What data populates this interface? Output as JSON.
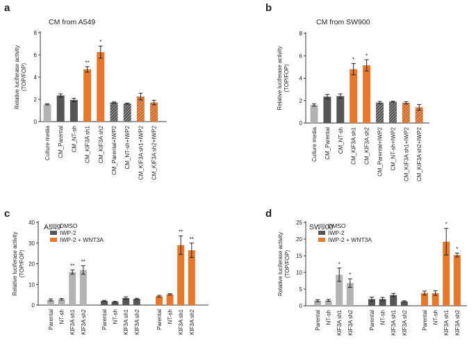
{
  "colors": {
    "light_gray": "#b3b3b3",
    "dark_gray": "#555555",
    "orange": "#e8772e",
    "hatch_dark": "#555555",
    "hatch_orange": "#d06a28"
  },
  "chart_data": [
    {
      "type": "bar",
      "panel_letter": "a",
      "title": "CM from A549",
      "ylabel": "Relative luciferase activity",
      "ylabel2": "(TOP/FOP)",
      "ylim": [
        0,
        8
      ],
      "yticks": [
        "0",
        "2",
        "4",
        "6",
        "8"
      ],
      "categories": [
        "Culture media",
        "CM_Parental",
        "CM_NT-sh",
        "CM_KIF3A sh1",
        "CM_KIF3A sh2",
        "CM_Parental+IWP2",
        "CM_NT-sh+IWP2",
        "CM_KIF3A sh1+IWP2",
        "CM_KIF3A sh2+IWP2"
      ],
      "values": [
        1.55,
        2.35,
        1.95,
        4.7,
        6.25,
        1.72,
        1.62,
        2.25,
        1.72
      ],
      "errors": [
        0.05,
        0.15,
        0.15,
        0.25,
        0.55,
        0.05,
        0.05,
        0.3,
        0.2
      ],
      "fills": [
        "light",
        "dark",
        "dark",
        "orange",
        "orange",
        "hatch_dark",
        "hatch_dark",
        "hatch_orange",
        "hatch_orange"
      ],
      "significance": [
        "",
        "",
        "",
        "**",
        "*",
        "",
        "",
        "",
        ""
      ]
    },
    {
      "type": "bar",
      "panel_letter": "b",
      "title": "CM from SW900",
      "ylabel": "Relative luciferase activity",
      "ylabel2": "(TOP/FOP)",
      "ylim": [
        0,
        8
      ],
      "yticks": [
        "0",
        "2",
        "4",
        "6",
        "8"
      ],
      "categories": [
        "Culture media",
        "CM_Parental",
        "CM_NT-sh",
        "CM_KIF3A sh1",
        "CM_KIF3A sh2",
        "CM_Parental+IWP2",
        "CM_NT-sh+IWP2",
        "CM_KIF3A sh1+IWP2",
        "CM_KIF3A sh2+IWP2"
      ],
      "values": [
        1.6,
        2.35,
        2.4,
        4.8,
        5.15,
        1.82,
        1.9,
        1.8,
        1.4
      ],
      "errors": [
        0.1,
        0.2,
        0.2,
        0.5,
        0.5,
        0.1,
        0.05,
        0.1,
        0.25
      ],
      "fills": [
        "light",
        "dark",
        "dark",
        "orange",
        "orange",
        "hatch_dark",
        "hatch_dark",
        "hatch_orange",
        "hatch_orange"
      ],
      "significance": [
        "",
        "",
        "",
        "*",
        "*",
        "",
        "",
        "",
        ""
      ]
    },
    {
      "type": "bar",
      "panel_letter": "c",
      "title": "A549",
      "ylabel": "Relative luciferase activity",
      "ylabel2": "(TOP/FOP)",
      "ylim": [
        0,
        40
      ],
      "yticks": [
        "0",
        "10",
        "20",
        "30",
        "40"
      ],
      "legend": [
        "DMSO",
        "IWP-2",
        "IWP-2 + WNT3A"
      ],
      "groups": [
        {
          "name": "DMSO",
          "fill": "light",
          "categories": [
            "Parental",
            "NT-sh",
            "KIF3A sh1",
            "KIF3A sh2"
          ],
          "values": [
            2.5,
            2.8,
            16.0,
            17.0
          ],
          "errors": [
            0.5,
            0.4,
            1.0,
            2.0
          ],
          "significance": [
            "",
            "",
            "**",
            "**"
          ]
        },
        {
          "name": "IWP-2",
          "fill": "dark",
          "categories": [
            "Parental",
            "NT-sh",
            "KIF3A sh1",
            "KIF3A sh2"
          ],
          "values": [
            2.0,
            1.6,
            3.4,
            3.0
          ],
          "errors": [
            0.3,
            0.2,
            0.6,
            0.3
          ],
          "significance": [
            "",
            "",
            "",
            ""
          ]
        },
        {
          "name": "IWP-2 + WNT3A",
          "fill": "orange",
          "categories": [
            "Parental",
            "NT-sh",
            "KIF3A sh1",
            "KIF3A sh2"
          ],
          "values": [
            4.3,
            5.2,
            29.0,
            26.5
          ],
          "errors": [
            0.4,
            0.3,
            4.5,
            3.5
          ],
          "significance": [
            "",
            "",
            "**",
            "**"
          ]
        }
      ]
    },
    {
      "type": "bar",
      "panel_letter": "d",
      "title": "SW900",
      "ylabel": "Relative luciferase activity",
      "ylabel2": "(TOP/FOP)",
      "ylim": [
        0,
        25
      ],
      "yticks": [
        "0",
        "5",
        "10",
        "15",
        "20",
        "25"
      ],
      "legend": [
        "DMSO",
        "IWP-2",
        "IWP-2 + WNT3A"
      ],
      "groups": [
        {
          "name": "DMSO",
          "fill": "light",
          "categories": [
            "Parental",
            "NT-sh",
            "KIF3A sh1",
            "KIF3A sh2"
          ],
          "values": [
            1.5,
            1.6,
            9.3,
            6.8
          ],
          "errors": [
            0.3,
            0.3,
            2.0,
            1.3
          ],
          "significance": [
            "",
            "",
            "*",
            "*"
          ]
        },
        {
          "name": "IWP-2",
          "fill": "dark",
          "categories": [
            "Parental",
            "NT-sh",
            "KIF3A sh1",
            "KIF3A sh2"
          ],
          "values": [
            2.0,
            2.0,
            3.2,
            1.3
          ],
          "errors": [
            0.6,
            0.5,
            0.5,
            0.2
          ],
          "significance": [
            "",
            "",
            "",
            ""
          ]
        },
        {
          "name": "IWP-2 + WNT3A",
          "fill": "orange",
          "categories": [
            "Parental",
            "NT-sh",
            "KIF3A sh1",
            "KIF3A sh2"
          ],
          "values": [
            3.8,
            3.8,
            19.2,
            15.2
          ],
          "errors": [
            0.6,
            0.7,
            4.0,
            0.6
          ],
          "significance": [
            "",
            "",
            "*",
            "*"
          ]
        }
      ]
    }
  ]
}
